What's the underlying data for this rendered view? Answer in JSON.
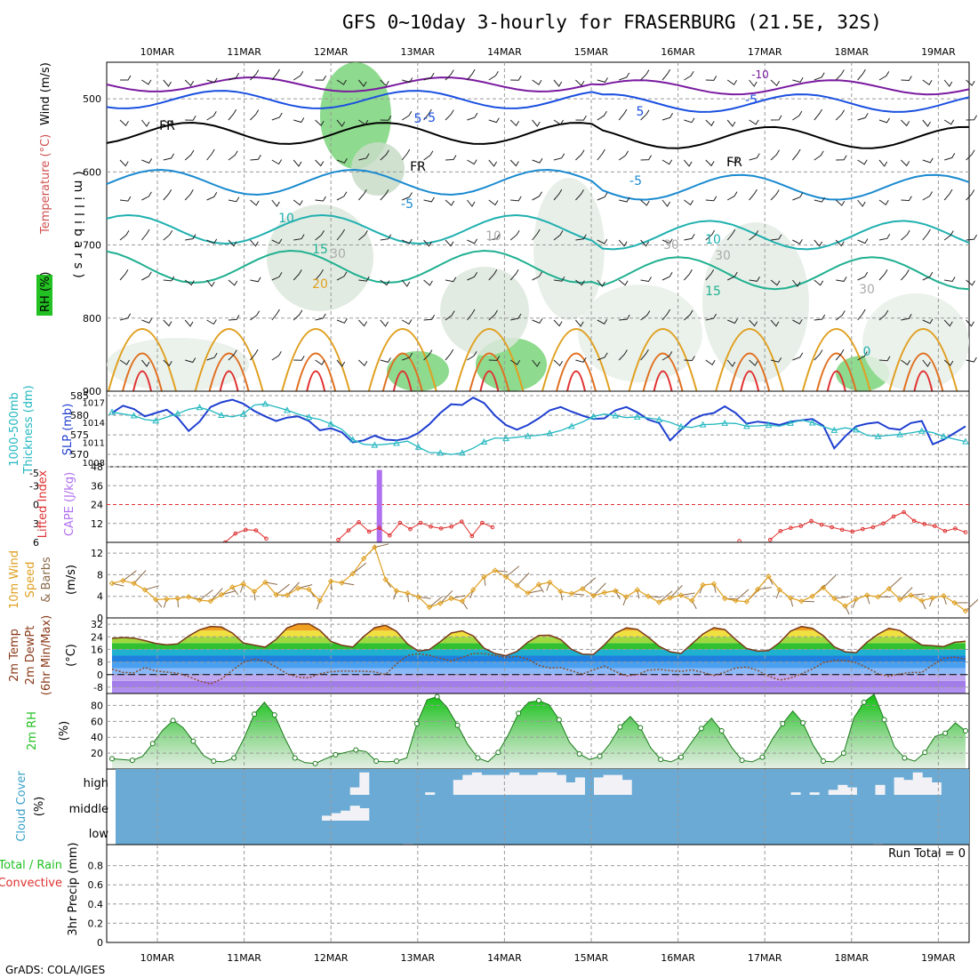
{
  "title": "GFS 0~10day 3-hourly for FRASERBURG (21.5E, 32S)",
  "footer": "GrADS: COLA/IGES",
  "colors": {
    "slp": "#1f3fd0",
    "thickness": "#22b8c0",
    "cape_bar": "#b070f0",
    "lifted_index": "#e03030",
    "wind_speed": "#e0a020",
    "wind_barb": "#8a6a4a",
    "temp_line": "#7a3a1a",
    "rh_fill": "#22c022",
    "cloud_bg": "#6aaad4",
    "cloud_fill": "#f2f2f6",
    "contour_cold": "#6a1aa0",
    "contour_cool": "#1a50e0",
    "contour_mid": "#20b0b0",
    "contour_warm": "#e0a020",
    "contour_hot": "#e03030"
  },
  "chart_data": [
    {
      "id": "upper_air",
      "type": "heatmap",
      "categories": [
        "10MAR",
        "11MAR",
        "12MAR",
        "13MAR",
        "14MAR",
        "15MAR",
        "16MAR",
        "17MAR",
        "18MAR",
        "19MAR"
      ],
      "ylabel": "(millibars)",
      "left_labels": [
        "Wind (m/s)",
        "Temperature (°C)",
        "RH (%)"
      ],
      "yticks": [
        500,
        600,
        700,
        800,
        900
      ],
      "ylim": [
        900,
        450
      ],
      "contour_labels": [
        "-10",
        "-5",
        "-5",
        "-5",
        "-5",
        "5",
        "5",
        "10",
        "10",
        "15",
        "15",
        "20",
        "FR",
        "FR",
        "FR",
        "10",
        "30",
        "30",
        "30",
        "30",
        "0"
      ],
      "freezing_level": "FR"
    },
    {
      "id": "thickness_slp",
      "type": "line",
      "left_labels": [
        "1000-500mb",
        "Thickness (dm)"
      ],
      "right_labels": [
        "SLP (mb)"
      ],
      "yticks_left": [
        585,
        580,
        575,
        570
      ],
      "yticks_right": [
        1017,
        1014,
        1011,
        1008
      ],
      "ylim_left": [
        568,
        585
      ],
      "ylim_right": [
        1008,
        1018
      ],
      "series": [
        {
          "name": "SLP (mb)",
          "axis": "right",
          "values": [
            1015.4,
            1016.5,
            1016.0,
            1014.9,
            1015.4,
            1015.9,
            1014.7,
            1012.7,
            1014.1,
            1016.3,
            1017.0,
            1017.4,
            1016.8,
            1015.7,
            1014.9,
            1014.2,
            1014.7,
            1014.9,
            1014.2,
            1012.8,
            1013.1,
            1012.5,
            1011.0,
            1011.3,
            1012.0,
            1011.4,
            1011.3,
            1011.6,
            1012.4,
            1013.7,
            1015.4,
            1016.7,
            1016.6,
            1017.7,
            1016.9,
            1015.0,
            1013.6,
            1012.9,
            1013.6,
            1014.6,
            1015.8,
            1016.3,
            1015.6,
            1015.0,
            1014.5,
            1014.6,
            1015.8,
            1016.3,
            1015.5,
            1014.4,
            1013.9,
            1011.3,
            1012.9,
            1014.4,
            1015.1,
            1015.4,
            1016.4,
            1015.4,
            1013.8,
            1014.1,
            1013.9,
            1013.6,
            1014.1,
            1014.3,
            1014.5,
            1013.5,
            1010.1,
            1011.9,
            1013.4,
            1013.8,
            1014.0,
            1013.1,
            1012.9,
            1013.9,
            1014.2,
            1010.7,
            1011.4,
            1012.4,
            1013.4
          ]
        },
        {
          "name": "1000-500mb Thickness (dm)",
          "axis": "left",
          "values": [
            580.8,
            580.3,
            579.9,
            578.9,
            578.6,
            579.5,
            580.4,
            581.5,
            582.0,
            581.2,
            580.0,
            579.6,
            580.3,
            582.6,
            582.9,
            582.1,
            581.3,
            580.3,
            579.5,
            578.9,
            577.8,
            576.4,
            573.8,
            572.6,
            572.4,
            572.6,
            572.9,
            573.4,
            571.9,
            570.5,
            570.4,
            570.0,
            570.4,
            571.6,
            573.2,
            574.2,
            574.1,
            574.4,
            574.7,
            574.9,
            575.4,
            576.1,
            577.2,
            578.3,
            579.7,
            580.3,
            579.9,
            579.4,
            579.6,
            579.3,
            578.9,
            578.2,
            577.1,
            576.9,
            577.6,
            577.7,
            578.0,
            577.9,
            577.2,
            577.3,
            577.5,
            577.2,
            578.0,
            578.8,
            578.1,
            577.1,
            576.2,
            576.8,
            576.3,
            574.9,
            574.6,
            574.9,
            575.1,
            575.5,
            576.0,
            575.6,
            574.6,
            573.9,
            573.3
          ]
        }
      ]
    },
    {
      "id": "cape_li",
      "type": "line",
      "left_labels": [
        "Lifted Index",
        "CAPE (J/kg)"
      ],
      "yticks_li": [
        -5,
        -3,
        0,
        3,
        6
      ],
      "yticks_cape": [
        48,
        36,
        24,
        12
      ],
      "ylim_cape": [
        0,
        48
      ],
      "li_zero_ref": 0,
      "series": [
        {
          "name": "CAPE (J/kg)",
          "type": "bar",
          "x_index": 26,
          "values": [
            46
          ]
        },
        {
          "name": "Lifted Index",
          "values": [
            null,
            null,
            null,
            null,
            null,
            null,
            null,
            null,
            null,
            null,
            null,
            6.0,
            4.6,
            4.0,
            4.1,
            5.4,
            null,
            null,
            null,
            null,
            null,
            null,
            5.6,
            4.1,
            2.8,
            4.3,
            3.7,
            4.9,
            2.9,
            3.9,
            2.9,
            3.5,
            3.8,
            3.5,
            2.7,
            5.0,
            2.9,
            3.6,
            null,
            null,
            null,
            null,
            null,
            null,
            null,
            null,
            null,
            null,
            null,
            null,
            null,
            null,
            null,
            null,
            null,
            null,
            null,
            null,
            null,
            null,
            null,
            5.8,
            null,
            null,
            5.6,
            4.2,
            3.7,
            3.4,
            2.6,
            3.2,
            3.6,
            4.0,
            4.3,
            3.9,
            3.6,
            3.0,
            1.9,
            1.2,
            2.6,
            3.1,
            3.4,
            4.2,
            3.8,
            4.4
          ]
        }
      ]
    },
    {
      "id": "wind10m",
      "type": "line",
      "left_labels": [
        "10m Wind",
        "Speed",
        "& Barbs",
        "(m/s)"
      ],
      "yticks": [
        0,
        4,
        8,
        12
      ],
      "ylim": [
        0,
        14
      ],
      "series": [
        {
          "name": "Speed (m/s)",
          "values": [
            6.4,
            6.9,
            6.4,
            5.2,
            3.4,
            3.5,
            3.6,
            3.9,
            3.3,
            3.1,
            4.3,
            5.7,
            6.3,
            4.9,
            6.6,
            4.3,
            4.2,
            5.5,
            5.3,
            3.2,
            6.8,
            6.5,
            8.2,
            11.0,
            13.1,
            7.1,
            5.0,
            4.6,
            3.9,
            2.0,
            2.7,
            3.6,
            3.1,
            5.2,
            7.6,
            8.8,
            7.6,
            6.0,
            4.6,
            6.2,
            6.6,
            4.9,
            4.5,
            5.4,
            4.1,
            4.7,
            5.0,
            3.9,
            5.2,
            4.0,
            2.9,
            3.7,
            4.2,
            3.2,
            6.1,
            6.3,
            3.6,
            3.2,
            3.0,
            5.3,
            7.7,
            5.2,
            3.7,
            3.1,
            4.0,
            5.6,
            3.6,
            2.2,
            3.5,
            4.2,
            3.9,
            5.4,
            3.4,
            4.2,
            3.2,
            3.7,
            4.1,
            2.8,
            1.3
          ]
        }
      ]
    },
    {
      "id": "temp2m",
      "type": "line",
      "left_labels": [
        "2m Temp",
        "2m DewPt",
        "(6hr Min/Max)",
        "(°C)"
      ],
      "yticks": [
        32,
        24,
        16,
        8,
        0,
        -8
      ],
      "ylim": [
        -12,
        36
      ],
      "series": [
        {
          "name": "2m Temp (°C)",
          "values": [
            23.0,
            23.5,
            23.2,
            21.6,
            19.8,
            18.9,
            19.5,
            24.5,
            28.5,
            30.6,
            30.2,
            26.4,
            20.1,
            18.7,
            17.4,
            22.4,
            29.6,
            32.2,
            32.3,
            28.1,
            21.1,
            18.6,
            17.5,
            24.2,
            29.8,
            31.3,
            27.5,
            19.5,
            15.0,
            15.9,
            20.9,
            26.4,
            27.8,
            24.6,
            16.8,
            13.4,
            12.0,
            14.7,
            20.6,
            24.9,
            25.0,
            22.3,
            16.0,
            13.0,
            12.8,
            18.9,
            26.3,
            29.7,
            28.8,
            23.8,
            18.0,
            14.5,
            13.4,
            19.6,
            25.8,
            29.8,
            28.6,
            22.3,
            16.6,
            14.9,
            15.2,
            20.3,
            27.6,
            30.5,
            29.4,
            24.7,
            17.7,
            14.5,
            13.9,
            20.6,
            25.6,
            29.4,
            28.0,
            23.2,
            18.8,
            18.4,
            17.8,
            20.5,
            21.2
          ]
        },
        {
          "name": "2m DewPt (°C)",
          "values": [
            3.5,
            1.4,
            1.1,
            4.5,
            2.3,
            1.6,
            0.8,
            -1.2,
            -4.1,
            -5.9,
            -2.8,
            2.7,
            7.9,
            9.8,
            8.7,
            4.8,
            0.5,
            -1.6,
            -2.1,
            0.6,
            1.8,
            2.3,
            2.2,
            2.1,
            1.7,
            0.1,
            6.8,
            12.1,
            13.3,
            12.3,
            10.3,
            8.7,
            10.9,
            13.4,
            13.3,
            12.2,
            10.8,
            11.6,
            9.8,
            5.9,
            4.2,
            4.5,
            2.4,
            0.3,
            3.0,
            5.4,
            2.0,
            -0.9,
            0.0,
            2.8,
            3.3,
            2.5,
            2.0,
            3.0,
            1.4,
            -0.6,
            1.5,
            4.2,
            4.9,
            2.7,
            -1.0,
            -3.5,
            -2.2,
            0.5,
            3.6,
            7.6,
            8.9,
            9.0,
            7.6,
            4.4,
            0.6,
            -1.1,
            0.5,
            1.4,
            1.3,
            6.2,
            10.3,
            11.1,
            9.8
          ]
        }
      ]
    },
    {
      "id": "rh2m",
      "type": "area",
      "left_labels": [
        "2m RH",
        "(%)"
      ],
      "yticks": [
        20,
        40,
        60,
        80
      ],
      "ylim": [
        0,
        95
      ],
      "series": [
        {
          "name": "2m RH (%)",
          "values": [
            13,
            12,
            11,
            16,
            32,
            49,
            61,
            52,
            35,
            17,
            10,
            9,
            14,
            39,
            69,
            84,
            68,
            39,
            14,
            8,
            7,
            13,
            18,
            21,
            24,
            22,
            10,
            9,
            10,
            14,
            57,
            87,
            91,
            77,
            55,
            31,
            14,
            9,
            21,
            43,
            70,
            84,
            86,
            81,
            62,
            34,
            19,
            12,
            16,
            32,
            53,
            66,
            52,
            27,
            12,
            9,
            15,
            33,
            51,
            64,
            48,
            27,
            11,
            9,
            15,
            38,
            57,
            73,
            58,
            30,
            10,
            9,
            20,
            64,
            84,
            94,
            62,
            28,
            14,
            10,
            21,
            41,
            45,
            58,
            48
          ]
        }
      ]
    },
    {
      "id": "cloud",
      "type": "heatmap",
      "left_labels": [
        "Cloud Cover",
        "(%)"
      ],
      "yticks": [
        "high",
        "middle",
        "low"
      ],
      "series": [
        {
          "name": "high",
          "values": [
            0,
            0,
            0,
            0,
            0,
            0,
            0,
            0,
            0,
            0,
            0,
            0,
            0,
            0,
            0,
            0,
            0,
            0,
            0,
            0,
            0,
            0,
            0,
            0,
            0,
            30,
            90,
            0,
            0,
            0,
            0,
            0,
            0,
            10,
            0,
            0,
            60,
            80,
            90,
            80,
            80,
            80,
            90,
            80,
            80,
            90,
            90,
            80,
            50,
            70,
            0,
            70,
            80,
            80,
            60,
            0,
            0,
            0,
            0,
            0,
            0,
            0,
            0,
            0,
            0,
            0,
            0,
            0,
            0,
            0,
            0,
            0,
            10,
            0,
            10,
            0,
            20,
            40,
            30,
            0,
            0,
            40,
            0,
            70,
            60,
            90,
            70,
            50,
            0,
            0,
            0
          ]
        },
        {
          "name": "middle",
          "values": [
            0,
            0,
            0,
            0,
            0,
            0,
            0,
            0,
            0,
            0,
            0,
            0,
            0,
            0,
            0,
            0,
            0,
            0,
            0,
            0,
            0,
            0,
            20,
            30,
            40,
            60,
            50,
            0,
            0,
            0,
            0,
            0,
            0,
            0,
            0,
            0,
            0,
            0,
            0,
            0,
            0,
            0,
            0,
            0,
            0,
            0,
            0,
            0,
            0,
            0,
            0,
            0,
            0,
            0,
            0,
            0,
            0,
            0,
            0,
            0,
            0,
            0,
            0,
            0,
            0,
            0,
            0,
            0,
            0,
            0,
            0,
            0,
            0,
            0,
            0,
            0,
            0,
            0,
            0,
            0,
            0,
            0,
            0,
            0,
            0,
            0,
            0,
            0,
            0,
            0,
            0
          ]
        },
        {
          "name": "low",
          "values": [
            0,
            0,
            0,
            0,
            0,
            0,
            0,
            0,
            0,
            0,
            0,
            0,
            0,
            0,
            0,
            0,
            0,
            0,
            0,
            0,
            0,
            0,
            0,
            0,
            0,
            0,
            0,
            0,
            0,
            0,
            10,
            0,
            0,
            0,
            0,
            0,
            0,
            0,
            0,
            0,
            0,
            0,
            0,
            0,
            0,
            0,
            0,
            0,
            0,
            0,
            0,
            0,
            0,
            0,
            0,
            0,
            0,
            0,
            0,
            0,
            0,
            0,
            0,
            0,
            0,
            0,
            0,
            0,
            0,
            0,
            0,
            0,
            0,
            0,
            0,
            0,
            0,
            0,
            0,
            10,
            0,
            0,
            0,
            0,
            0,
            0,
            0,
            0,
            0
          ]
        }
      ]
    },
    {
      "id": "precip",
      "type": "bar",
      "left_labels": [
        "Total / Rain",
        "Convective",
        "3hr Precip (mm)"
      ],
      "yticks": [
        0,
        0.2,
        0.4,
        0.6,
        0.8
      ],
      "ylim": [
        0,
        1
      ],
      "run_total": "Run Total = 0",
      "series": []
    }
  ]
}
